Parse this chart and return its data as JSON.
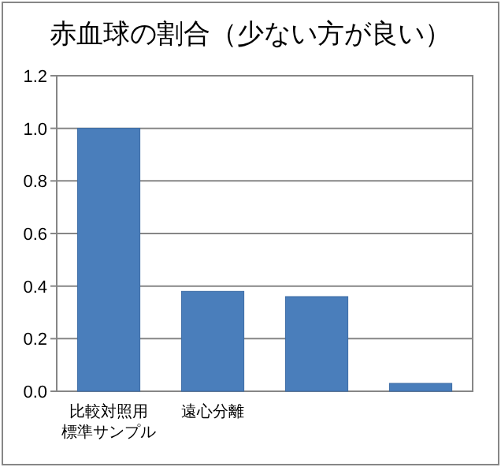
{
  "chart_data": {
    "type": "bar",
    "title": "赤血球の割合（少ない方が良い）",
    "categories": [
      "比較対照用標準サンプル",
      "遠心分離",
      null,
      null
    ],
    "values": [
      1.0,
      0.38,
      0.36,
      0.03
    ],
    "color": "#4a7ebb",
    "ylim": [
      0,
      1.2
    ],
    "yticks": [
      {
        "value": 0,
        "label": "0.0"
      },
      {
        "value": 0.2,
        "label": "0.2"
      },
      {
        "value": 0.4,
        "label": "0.4"
      },
      {
        "value": 0.6,
        "label": "0.6"
      },
      {
        "value": 0.8,
        "label": "0.8"
      },
      {
        "value": 1.0,
        "label": "1.0"
      },
      {
        "value": 1.2,
        "label": "1.2"
      }
    ],
    "grid": "y"
  }
}
